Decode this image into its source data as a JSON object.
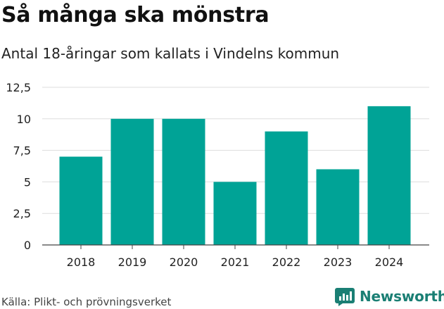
{
  "header": {
    "title": "Så många ska mönstra",
    "subtitle": "Antal 18-åringar som kallats i Vindelns kommun"
  },
  "footer": {
    "source": "Källa: Plikt- och prövningsverket",
    "brand": "Newsworthy",
    "brand_icon": "chart-bubble-icon"
  },
  "colors": {
    "bar": "#00a396",
    "grid": "#dddddd",
    "axis": "#444444",
    "brand": "#1a7f74"
  },
  "chart_data": {
    "type": "bar",
    "title": "Så många ska mönstra",
    "subtitle": "Antal 18-åringar som kallats i Vindelns kommun",
    "xlabel": "",
    "ylabel": "",
    "categories": [
      "2018",
      "2019",
      "2020",
      "2021",
      "2022",
      "2023",
      "2024"
    ],
    "values": [
      7,
      10,
      10,
      5,
      9,
      6,
      11
    ],
    "ylim": [
      0,
      12.5
    ],
    "yticks": [
      0,
      2.5,
      5,
      7.5,
      10,
      12.5
    ],
    "ytick_labels": [
      "0",
      "2,5",
      "5",
      "7,5",
      "10",
      "12,5"
    ],
    "grid": true,
    "legend": "none"
  }
}
